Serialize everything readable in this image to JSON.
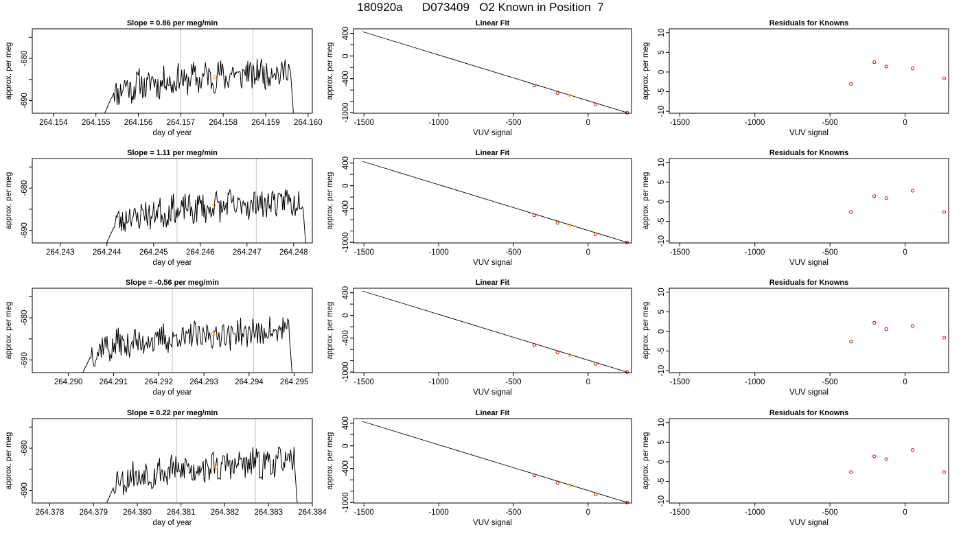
{
  "title": "180920a      D073409   O2 Known in Position  7",
  "colors": {
    "trace": "#000000",
    "marker_line": "#cccccc",
    "current_point": "#ffa500",
    "known_point": "#cc0000"
  },
  "chart_data": [
    {
      "type": "line",
      "panel": "time-series",
      "row": 1,
      "title": "Slope =  0.86  per meg/min",
      "xlabel": "day of year",
      "ylabel": "approx. per meg",
      "xlim": [
        264.1535,
        264.1601
      ],
      "ylim": [
        -693,
        -673
      ],
      "xticks": [
        "264.154",
        "264.155",
        "264.156",
        "264.157",
        "264.158",
        "264.159",
        "264.160"
      ],
      "yticks": [
        "-680",
        "-690"
      ],
      "trace_start": 264.1549,
      "trace_end": 264.1597,
      "vlines": [
        264.157,
        264.1587
      ],
      "highlight_point": {
        "x": 264.1578,
        "y": -684.5
      },
      "seed": 11
    },
    {
      "type": "line",
      "panel": "linear-fit",
      "row": 1,
      "title": "Linear Fit",
      "xlabel": "VUV signal",
      "ylabel": "approx. per meg",
      "xlim": [
        -1570,
        290
      ],
      "ylim": [
        -1010,
        480
      ],
      "xticks": [
        "-1500",
        "-1000",
        "-500",
        "0"
      ],
      "yticks": [
        "400",
        "0",
        "-400",
        "-1000"
      ],
      "line": [
        [
          -1510,
          430
        ],
        [
          260,
          -1000
        ]
      ],
      "points": [
        [
          -360,
          -520
        ],
        [
          -205,
          -655
        ],
        [
          -125,
          -700
        ],
        [
          50,
          -855
        ],
        [
          260,
          -1000
        ]
      ],
      "current_index": 2
    },
    {
      "type": "scatter",
      "panel": "residuals",
      "row": 1,
      "title": "Residuals for Knowns",
      "xlabel": "VUV signal",
      "ylabel": "approx. per meg",
      "xlim": [
        -1570,
        290
      ],
      "ylim": [
        -10.5,
        11
      ],
      "xticks": [
        "-1500",
        "-1000",
        "-500",
        "0"
      ],
      "yticks": [
        "10",
        "5",
        "0",
        "-5",
        "-10"
      ],
      "points": [
        [
          -360,
          -3.0
        ],
        [
          -205,
          2.5
        ],
        [
          -125,
          1.4
        ],
        [
          50,
          0.9
        ],
        [
          260,
          -1.6
        ]
      ]
    },
    {
      "type": "line",
      "panel": "time-series",
      "row": 2,
      "title": "Slope =  1.11  per meg/min",
      "xlabel": "day of year",
      "ylabel": "approx. per meg",
      "xlim": [
        264.2424,
        264.2484
      ],
      "ylim": [
        -693,
        -673
      ],
      "xticks": [
        "264.243",
        "264.244",
        "264.245",
        "264.246",
        "264.247",
        "264.248"
      ],
      "yticks": [
        "-680",
        "-690"
      ],
      "trace_start": 264.2437,
      "trace_end": 264.2483,
      "vlines": [
        264.2455,
        264.2472
      ],
      "highlight_point": {
        "x": 264.2463,
        "y": -684.0
      },
      "seed": 23
    },
    {
      "type": "line",
      "panel": "linear-fit",
      "row": 2,
      "title": "Linear Fit",
      "xlabel": "VUV signal",
      "ylabel": "approx. per meg",
      "xlim": [
        -1570,
        290
      ],
      "ylim": [
        -1010,
        480
      ],
      "xticks": [
        "-1500",
        "-1000",
        "-500",
        "0"
      ],
      "yticks": [
        "400",
        "0",
        "-400",
        "-1000"
      ],
      "line": [
        [
          -1510,
          430
        ],
        [
          260,
          -1000
        ]
      ],
      "points": [
        [
          -360,
          -520
        ],
        [
          -205,
          -655
        ],
        [
          -125,
          -700
        ],
        [
          50,
          -855
        ],
        [
          260,
          -1000
        ]
      ],
      "current_index": 2
    },
    {
      "type": "scatter",
      "panel": "residuals",
      "row": 2,
      "title": "Residuals for Knowns",
      "xlabel": "VUV signal",
      "ylabel": "approx. per meg",
      "xlim": [
        -1570,
        290
      ],
      "ylim": [
        -10.5,
        11
      ],
      "xticks": [
        "-1500",
        "-1000",
        "-500",
        "0"
      ],
      "yticks": [
        "10",
        "5",
        "0",
        "-5",
        "-10"
      ],
      "points": [
        [
          -360,
          -2.6
        ],
        [
          -205,
          1.4
        ],
        [
          -125,
          0.9
        ],
        [
          50,
          2.8
        ],
        [
          260,
          -2.6
        ]
      ]
    },
    {
      "type": "line",
      "panel": "time-series",
      "row": 3,
      "title": "Slope =  -0.56  per meg/min",
      "xlabel": "day of year",
      "ylabel": "approx. per meg",
      "xlim": [
        264.2892,
        264.2954
      ],
      "ylim": [
        -693,
        -673
      ],
      "xticks": [
        "264.290",
        "264.291",
        "264.292",
        "264.293",
        "264.294",
        "264.295"
      ],
      "yticks": [
        "-680",
        "-690"
      ],
      "trace_start": 264.29,
      "trace_end": 264.295,
      "vlines": [
        264.2923,
        264.2941
      ],
      "highlight_point": {
        "x": 264.2932,
        "y": -683.8
      },
      "seed": 37
    },
    {
      "type": "line",
      "panel": "linear-fit",
      "row": 3,
      "title": "Linear Fit",
      "xlabel": "VUV signal",
      "ylabel": "approx. per meg",
      "xlim": [
        -1570,
        290
      ],
      "ylim": [
        -1010,
        480
      ],
      "xticks": [
        "-1500",
        "-1000",
        "-500",
        "0"
      ],
      "yticks": [
        "400",
        "0",
        "-400",
        "-1000"
      ],
      "line": [
        [
          -1510,
          430
        ],
        [
          260,
          -1000
        ]
      ],
      "points": [
        [
          -360,
          -520
        ],
        [
          -205,
          -655
        ],
        [
          -125,
          -700
        ],
        [
          50,
          -855
        ],
        [
          260,
          -1000
        ]
      ],
      "current_index": 2
    },
    {
      "type": "scatter",
      "panel": "residuals",
      "row": 3,
      "title": "Residuals for Knowns",
      "xlabel": "VUV signal",
      "ylabel": "approx. per meg",
      "xlim": [
        -1570,
        290
      ],
      "ylim": [
        -10.5,
        11
      ],
      "xticks": [
        "-1500",
        "-1000",
        "-500",
        "0"
      ],
      "yticks": [
        "10",
        "5",
        "0",
        "-5",
        "-10"
      ],
      "points": [
        [
          -360,
          -2.6
        ],
        [
          -205,
          2.2
        ],
        [
          -125,
          0.6
        ],
        [
          50,
          1.4
        ],
        [
          260,
          -1.6
        ]
      ]
    },
    {
      "type": "line",
      "panel": "time-series",
      "row": 4,
      "title": "Slope =  0.22  per meg/min",
      "xlabel": "day of year",
      "ylabel": "approx. per meg",
      "xlim": [
        264.3776,
        264.384
      ],
      "ylim": [
        -693,
        -673
      ],
      "xticks": [
        "264.378",
        "264.379",
        "264.380",
        "264.381",
        "264.382",
        "264.383",
        "264.384"
      ],
      "yticks": [
        "-680",
        "-690"
      ],
      "trace_start": 264.379,
      "trace_end": 264.3837,
      "vlines": [
        264.3809,
        264.3827
      ],
      "highlight_point": {
        "x": 264.3818,
        "y": -684.5
      },
      "seed": 53
    },
    {
      "type": "line",
      "panel": "linear-fit",
      "row": 4,
      "title": "Linear Fit",
      "xlabel": "VUV signal",
      "ylabel": "approx. per meg",
      "xlim": [
        -1570,
        290
      ],
      "ylim": [
        -1010,
        480
      ],
      "xticks": [
        "-1500",
        "-1000",
        "-500",
        "0"
      ],
      "yticks": [
        "400",
        "0",
        "-400",
        "-1000"
      ],
      "line": [
        [
          -1510,
          430
        ],
        [
          260,
          -1000
        ]
      ],
      "points": [
        [
          -360,
          -520
        ],
        [
          -205,
          -655
        ],
        [
          -125,
          -700
        ],
        [
          50,
          -855
        ],
        [
          260,
          -1000
        ]
      ],
      "current_index": 2
    },
    {
      "type": "scatter",
      "panel": "residuals",
      "row": 4,
      "title": "Residuals for Knowns",
      "xlabel": "VUV signal",
      "ylabel": "approx. per meg",
      "xlim": [
        -1570,
        290
      ],
      "ylim": [
        -10.5,
        11
      ],
      "xticks": [
        "-1500",
        "-1000",
        "-500",
        "0"
      ],
      "yticks": [
        "10",
        "5",
        "0",
        "-5",
        "-10"
      ],
      "points": [
        [
          -360,
          -2.6
        ],
        [
          -205,
          1.4
        ],
        [
          -125,
          0.7
        ],
        [
          50,
          3.0
        ],
        [
          260,
          -2.6
        ]
      ]
    }
  ]
}
